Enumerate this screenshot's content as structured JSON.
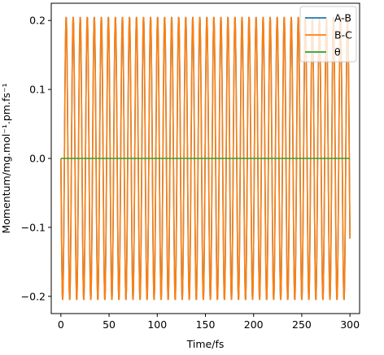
{
  "chart_data": {
    "type": "line",
    "title": "",
    "xlabel": "Time/fs",
    "ylabel": "Momentum/mg.mol⁻¹.pm.fs⁻¹",
    "xlim": [
      -10,
      310
    ],
    "ylim": [
      -0.225,
      0.225
    ],
    "x_ticks": [
      0,
      50,
      100,
      150,
      200,
      250,
      300
    ],
    "y_ticks": [
      -0.2,
      -0.1,
      0.0,
      0.1,
      0.2
    ],
    "x_tick_labels": [
      "0",
      "50",
      "100",
      "150",
      "200",
      "250",
      "300"
    ],
    "y_tick_labels": [
      "−0.2",
      "−0.1",
      "0.0",
      "0.1",
      "0.2"
    ],
    "grid": false,
    "legend_position": "top-right",
    "series": [
      {
        "name": "A-B",
        "color": "#1f77b4",
        "kind": "sine",
        "amplitude": 0.205,
        "period_fs": 7.3,
        "x_start": 0,
        "x_end": 300
      },
      {
        "name": "B-C",
        "color": "#ff7f0e",
        "kind": "sine",
        "amplitude": 0.205,
        "period_fs": 7.3,
        "x_start": 0,
        "x_end": 300
      },
      {
        "name": "θ",
        "color": "#2ca02c",
        "kind": "constant",
        "value": 0.0,
        "x_start": 0,
        "x_end": 300
      }
    ]
  }
}
